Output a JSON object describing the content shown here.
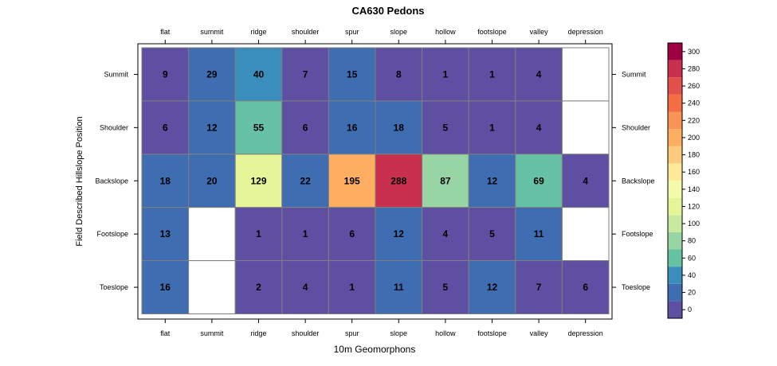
{
  "chart_data": {
    "type": "heatmap",
    "title": "CA630 Pedons",
    "xlabel": "10m Geomorphons",
    "ylabel": "Field Described Hillslope Position",
    "columns": [
      "flat",
      "summit",
      "ridge",
      "shoulder",
      "spur",
      "slope",
      "hollow",
      "footslope",
      "valley",
      "depression"
    ],
    "rows": [
      "Summit",
      "Shoulder",
      "Backslope",
      "Footslope",
      "Toeslope"
    ],
    "values": [
      [
        9,
        29,
        40,
        7,
        15,
        8,
        1,
        1,
        4,
        null
      ],
      [
        6,
        12,
        55,
        6,
        16,
        18,
        5,
        1,
        4,
        null
      ],
      [
        18,
        20,
        129,
        22,
        195,
        288,
        87,
        12,
        69,
        4
      ],
      [
        13,
        null,
        1,
        1,
        6,
        12,
        4,
        5,
        11,
        null
      ],
      [
        16,
        null,
        2,
        4,
        1,
        11,
        5,
        12,
        7,
        6
      ]
    ],
    "colorbar": {
      "range": [
        -10,
        310
      ],
      "breaks": [
        -10,
        10,
        30,
        50,
        70,
        90,
        110,
        130,
        150,
        170,
        190,
        210,
        230,
        250,
        270,
        290,
        310
      ],
      "colors": [
        "#5e4fa2",
        "#3f6db1",
        "#3a8ebc",
        "#66c2a5",
        "#98d5a4",
        "#c7e9a0",
        "#e6f598",
        "#f4fbad",
        "#fee999",
        "#fdcb7d",
        "#fdae61",
        "#f99455",
        "#f46d43",
        "#e2504a",
        "#c8304d",
        "#9e0142"
      ],
      "ticks": [
        0,
        20,
        40,
        60,
        80,
        100,
        120,
        140,
        160,
        180,
        200,
        220,
        240,
        260,
        280,
        300
      ]
    },
    "grid": true,
    "legend": "right"
  }
}
